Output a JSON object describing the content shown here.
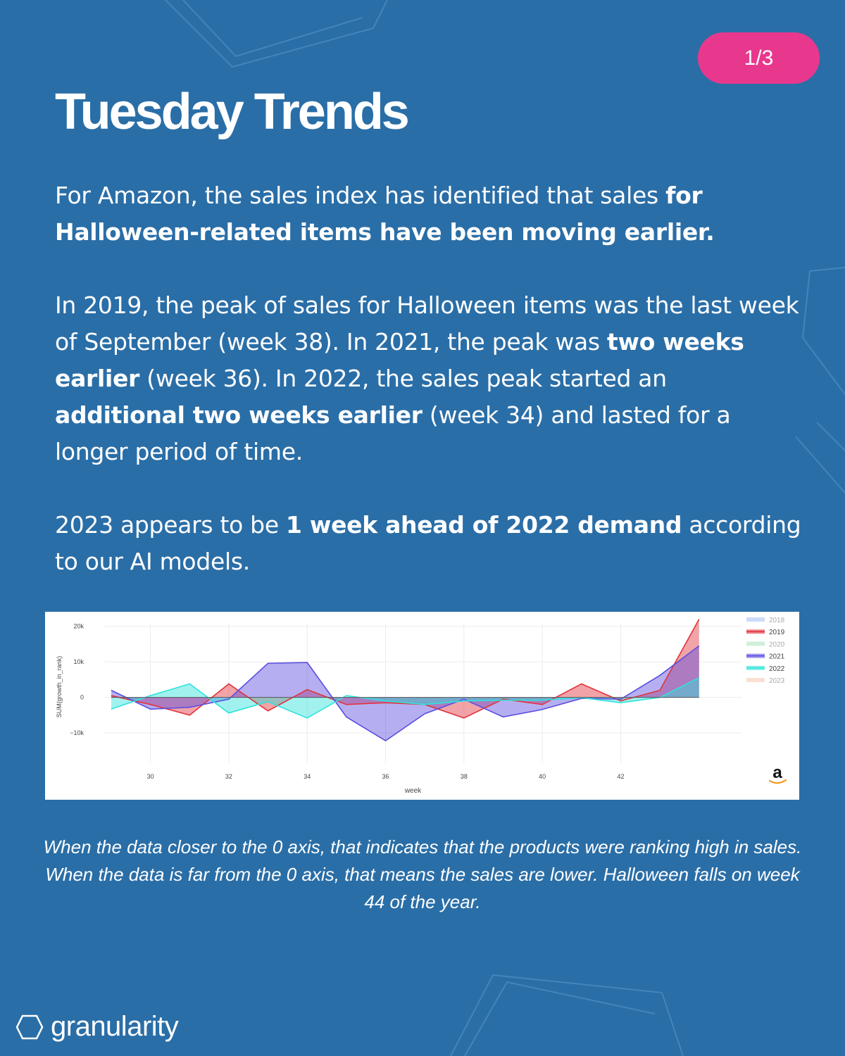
{
  "badge": "1/3",
  "title": "Tuesday Trends",
  "p1": {
    "t1": "For Amazon, the sales index has identified that sales ",
    "b1": "for Halloween-related items have been moving earlier."
  },
  "p2": {
    "t1": "In 2019, the peak of sales for Halloween items was the last week of September (week 38). In 2021, the peak was ",
    "b1": "two weeks earlier",
    "t2": " (week 36). In 2022, the sales peak started an ",
    "b2": "additional two weeks earlier",
    "t3": " (week 34) and lasted for a longer period of time."
  },
  "p3": {
    "t1": "2023 appears to be ",
    "b1": "1 week ahead of 2022 demand",
    "t2": " according to our AI models."
  },
  "caption": "When the data closer to the 0 axis, that indicates that the products were ranking high in sales. When the data is far from the 0 axis, that means the sales are lower. Halloween falls on week 44 of the year.",
  "brand": {
    "name": "granularity",
    "logo_icon": "hexagon-outline-icon"
  },
  "amazon_logo_text": "a",
  "colors": {
    "background": "#2a6ea7",
    "badge": "#e8388e",
    "2018": "#9db6f5",
    "2019": "#e0343b",
    "2020": "#9fe0b4",
    "2021": "#5b4ee0",
    "2022": "#2fe3dc",
    "2023": "#f5c2a8"
  },
  "chart_data": {
    "type": "area",
    "xlabel": "week",
    "ylabel": "SUM(growth_in_rank)",
    "xlim": [
      28.3,
      45.1
    ],
    "ylim": [
      -18500,
      22500
    ],
    "xticks": [
      30,
      32,
      34,
      36,
      38,
      40,
      42
    ],
    "xtick_labels": [
      "30",
      "32",
      "34",
      "36",
      "38",
      "40",
      "42"
    ],
    "yticks": [
      20000,
      10000,
      0,
      -10000
    ],
    "ytick_labels": [
      "20k",
      "10k",
      "0",
      "−10k"
    ],
    "legend": {
      "position": "top-right",
      "items": [
        "2018",
        "2019",
        "2020",
        "2021",
        "2022",
        "2023"
      ]
    },
    "x": [
      29,
      30,
      31,
      32,
      33,
      34,
      35,
      36,
      37,
      38,
      39,
      40,
      41,
      42,
      43,
      44
    ],
    "series": [
      {
        "name": "2019",
        "values": [
          500,
          -2000,
          -5000,
          3800,
          -3800,
          2200,
          -2000,
          -1500,
          -2000,
          -5800,
          -500,
          -2000,
          3800,
          -1000,
          2000,
          22000
        ]
      },
      {
        "name": "2021",
        "values": [
          2000,
          -3300,
          -2800,
          -500,
          9600,
          9800,
          -5500,
          -12200,
          -4600,
          -500,
          -5500,
          -3400,
          -300,
          -500,
          6200,
          14500
        ]
      },
      {
        "name": "2022",
        "values": [
          -3300,
          500,
          3800,
          -4400,
          -1200,
          -5800,
          500,
          -1000,
          -2000,
          -1000,
          -800,
          -800,
          -100,
          -1500,
          0,
          5500
        ]
      }
    ]
  }
}
